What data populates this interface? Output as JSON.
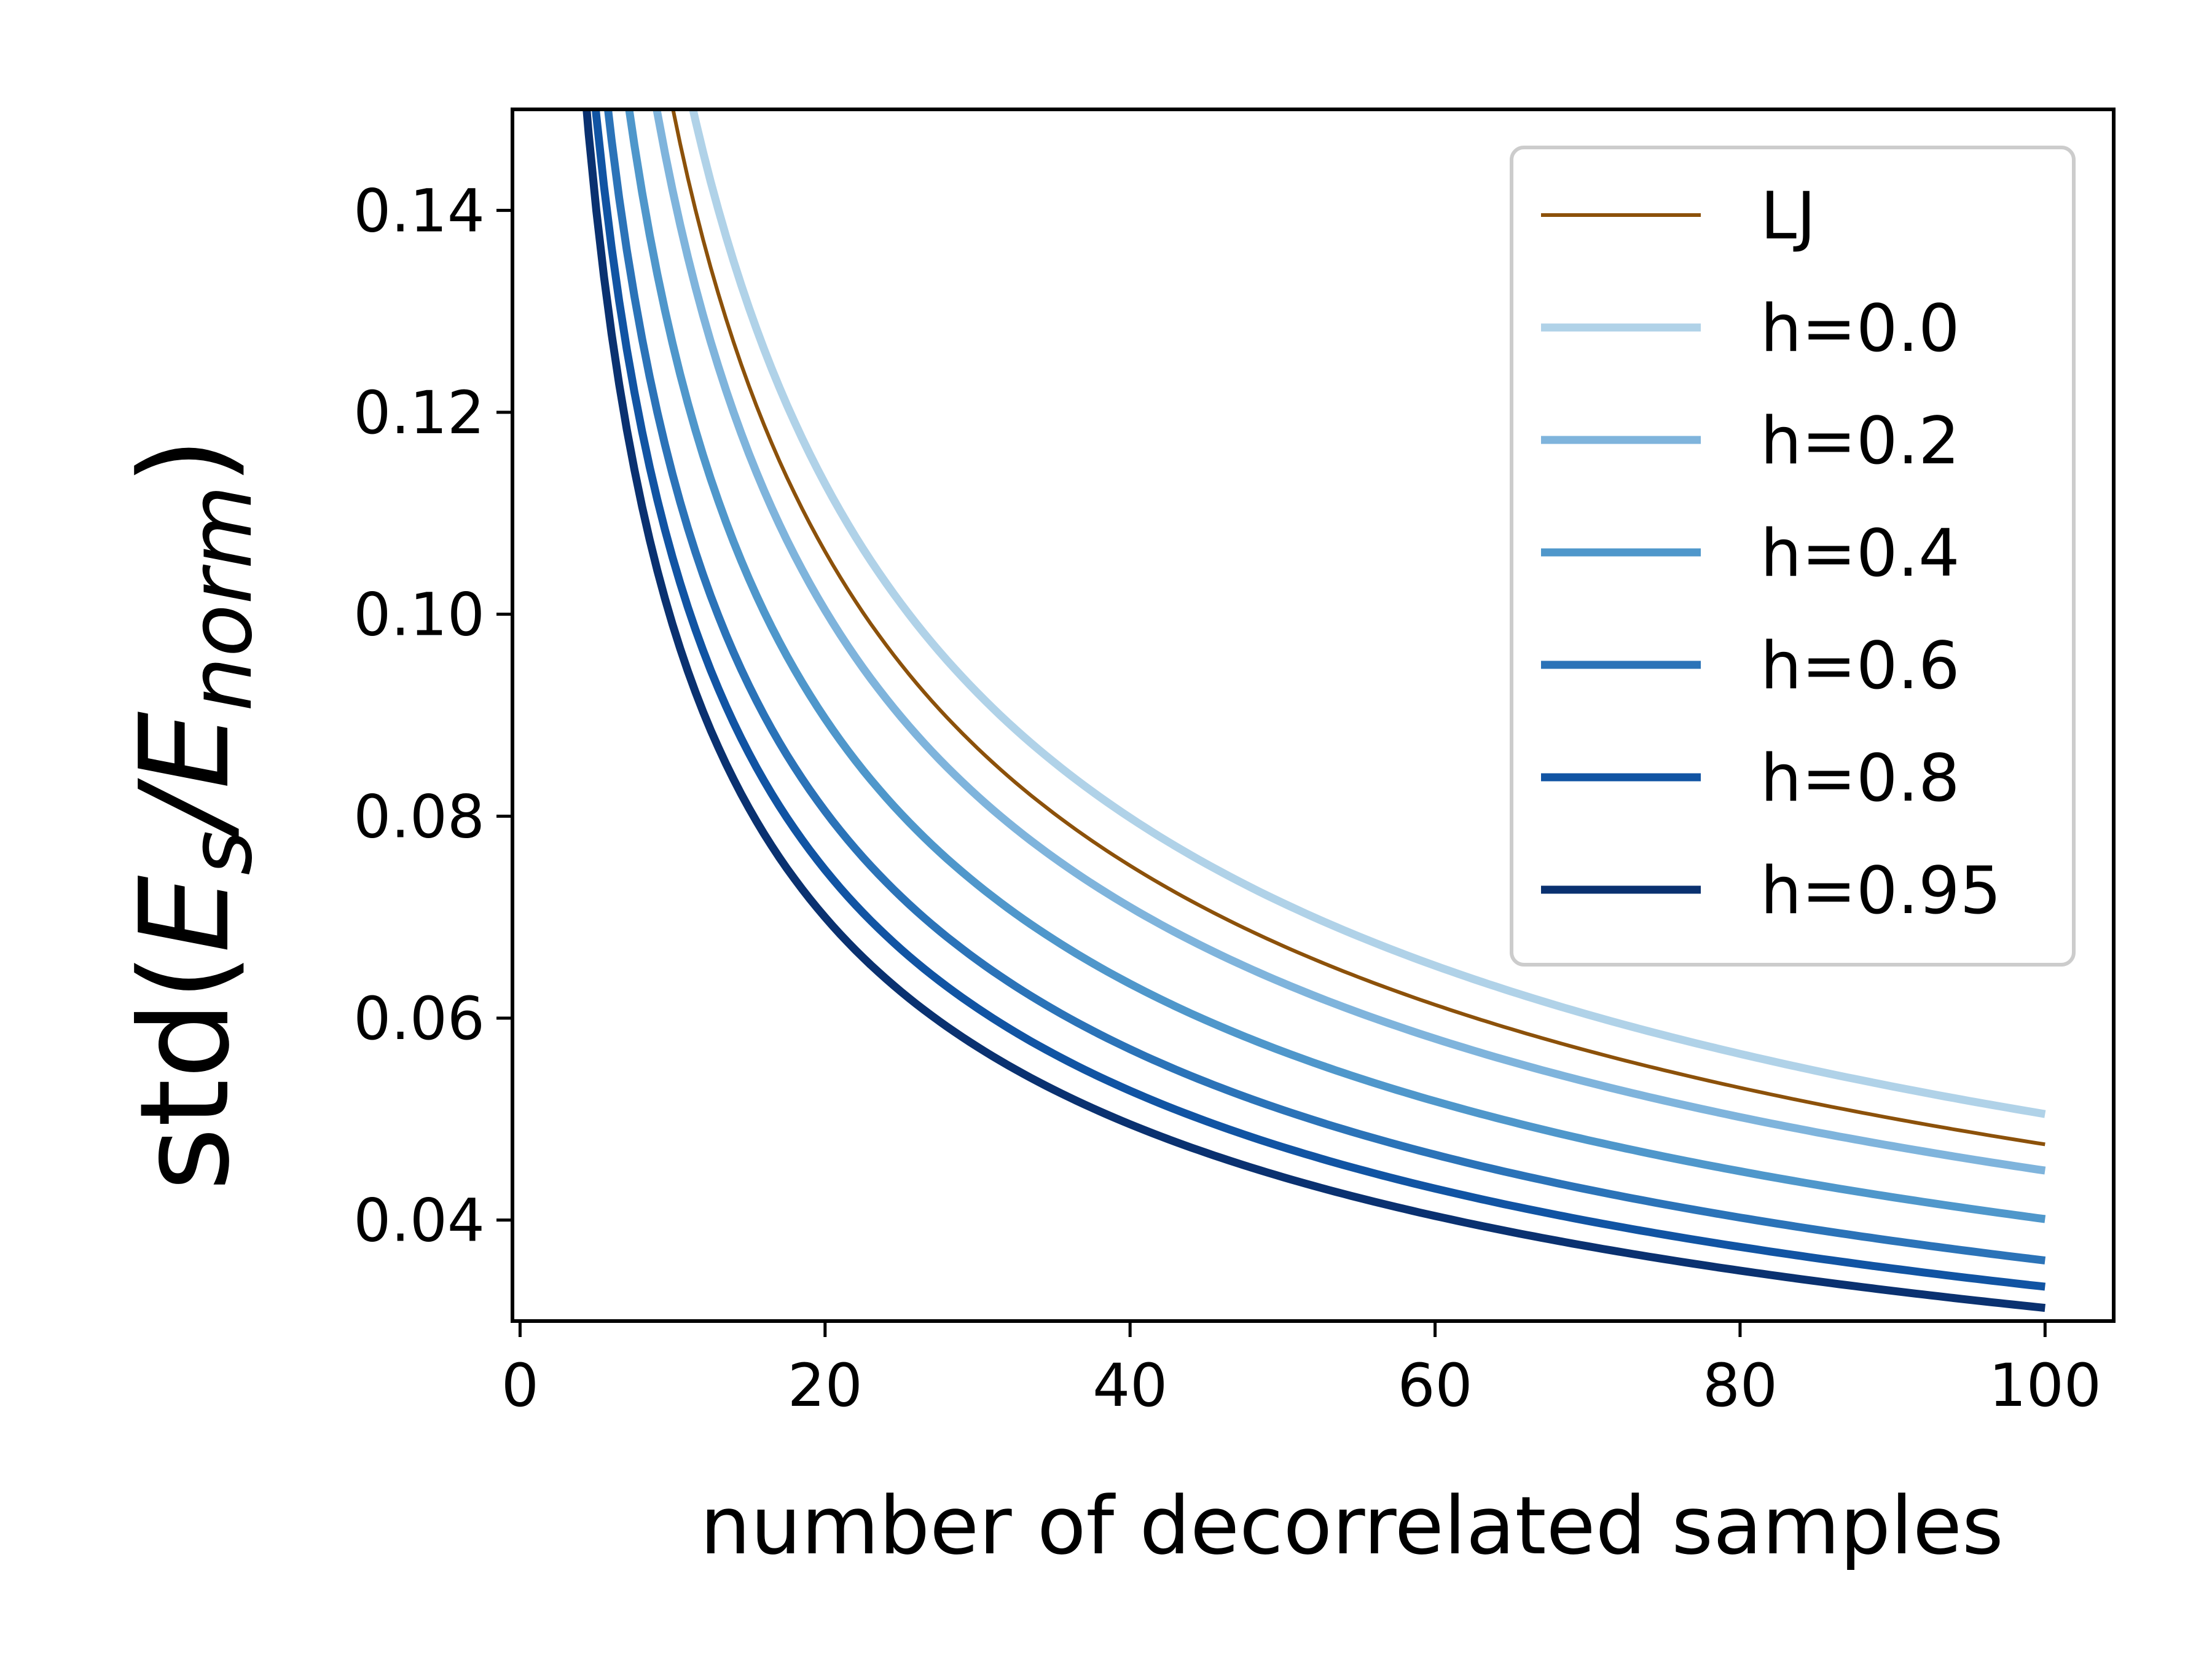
{
  "chart_data": {
    "type": "line",
    "title": "",
    "xlabel": "number of decorrelated samples",
    "ylabel": {
      "prefix": "std(",
      "E1": "E",
      "sub1": "s",
      "slash": "/",
      "E2": "E",
      "sub2": "norm",
      "suffix": ")"
    },
    "xlim": [
      -0.5,
      104.5
    ],
    "ylim": [
      0.03,
      0.15
    ],
    "xticks": [
      0,
      20,
      40,
      60,
      80,
      100
    ],
    "xtick_labels": [
      "0",
      "20",
      "40",
      "60",
      "80",
      "100"
    ],
    "yticks": [
      0.04,
      0.06,
      0.08,
      0.1,
      0.12,
      0.14
    ],
    "ytick_labels": [
      "0.04",
      "0.06",
      "0.08",
      "0.10",
      "0.12",
      "0.14"
    ],
    "legend_position": "top-right",
    "series": [
      {
        "name": "LJ",
        "color": "#8c510a",
        "width": "thin",
        "c": 0.475,
        "p": 0.5
      },
      {
        "name": "h=0.0",
        "color": "#b0d2e8",
        "width": "thick",
        "c": 0.505,
        "p": 0.5
      },
      {
        "name": "h=0.2",
        "color": "#7fb4dc",
        "width": "thick",
        "c": 0.449,
        "p": 0.5
      },
      {
        "name": "h=0.4",
        "color": "#4f97cb",
        "width": "thick",
        "c": 0.401,
        "p": 0.5
      },
      {
        "name": "h=0.6",
        "color": "#2b73b8",
        "width": "thick",
        "c": 0.36,
        "p": 0.5
      },
      {
        "name": "h=0.8",
        "color": "#1154a3",
        "width": "thick",
        "c": 0.334,
        "p": 0.5
      },
      {
        "name": "h=0.95",
        "color": "#0a3170",
        "width": "thick",
        "c": 0.313,
        "p": 0.5
      }
    ]
  }
}
